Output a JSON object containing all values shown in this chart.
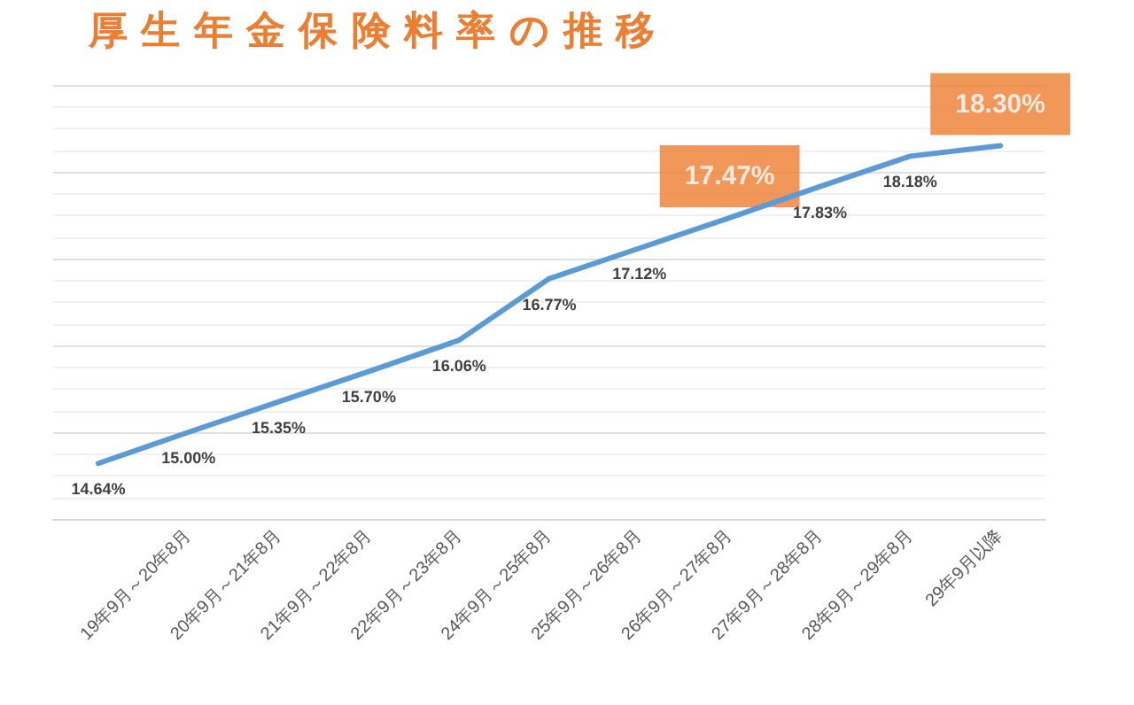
{
  "chart_data": {
    "type": "line",
    "title": "厚 生 年 金 保 険 料 率 の 推 移",
    "categories": [
      null,
      "19年9月～20年8月",
      "20年9月～21年8月",
      "21年9月～22年8月",
      "22年9月～23年8月",
      "24年9月～25年8月",
      "25年9月～26年8月",
      "26年9月～27年8月",
      "27年9月～28年8月",
      "28年9月～29年8月",
      "29年9月以降"
    ],
    "series": [
      {
        "color": "#5b9bd5",
        "values": [
          14.64,
          15.0,
          15.35,
          15.7,
          16.06,
          16.77,
          17.12,
          17.47,
          17.83,
          18.18,
          18.3
        ],
        "value_labels": [
          "14.64%",
          "15.00%",
          "15.35%",
          "15.70%",
          "16.06%",
          "16.77%",
          "17.12%",
          null,
          "17.83%",
          "18.18%",
          null
        ]
      }
    ],
    "annotations": [
      {
        "text": "17.47%",
        "x": "26年9月～27年8月",
        "y": 17.47
      },
      {
        "text": "18.30%",
        "x": "29年9月以降",
        "y": 18.3
      }
    ],
    "grid": "y",
    "marker": "none",
    "line_style": "solid",
    "tick_labels": "x"
  }
}
